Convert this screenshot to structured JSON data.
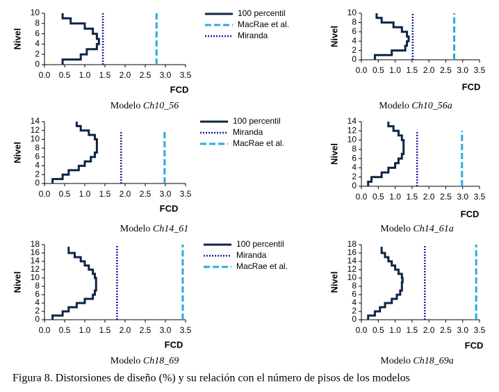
{
  "caption": "Figura 8. Distorsiones de diseño (%) y su relación con el número de pisos de los modelos",
  "chart_data": [
    {
      "type": "line",
      "caption_label": "Modelo",
      "model": "Ch10_56",
      "xlabel": "FCD",
      "ylabel": "Nivel",
      "legend": "right",
      "xlim": [
        0,
        3.5
      ],
      "xticks": [
        {
          "value": 0,
          "label": "0.0"
        },
        0.5,
        {
          "value": 1,
          "label": "1.0"
        },
        1.5,
        {
          "value": 2,
          "label": "2.0"
        },
        2.5,
        {
          "value": 3,
          "label": "3.0"
        },
        3.5
      ],
      "ylim": [
        0,
        10
      ],
      "yticks": [
        0,
        2,
        4,
        6,
        8,
        10
      ],
      "series": [
        {
          "name": "100 percentil",
          "color": "#0d2447",
          "dash": "solid",
          "x": [
            0.45,
            0.45,
            0.65,
            0.65,
            1,
            1,
            1.2,
            1.2,
            1.3,
            1.3,
            1.35,
            1.35,
            1.3,
            1.3,
            1.05,
            1.05,
            0.9,
            0.9,
            0.45,
            0.45
          ],
          "values": [
            10,
            9,
            9,
            8,
            8,
            7,
            7,
            6,
            6,
            5,
            5,
            4,
            4,
            3,
            3,
            2,
            2,
            1,
            1,
            0
          ]
        },
        {
          "name": "MacRae et al.",
          "color": "#29a9e0",
          "dash": "dashed",
          "x": [
            2.78,
            2.78
          ],
          "values": [
            0,
            10
          ]
        },
        {
          "name": "Miranda",
          "color": "#1a1aa8",
          "dash": "dotted",
          "x": [
            1.45,
            1.45
          ],
          "values": [
            0,
            10
          ]
        }
      ]
    },
    {
      "type": "line",
      "caption_label": "Modelo",
      "model": "Ch10_56a",
      "xlabel": "FCD",
      "ylabel": "Nivel",
      "xlim": [
        0,
        3.5
      ],
      "xticks": [
        {
          "value": 0,
          "label": "0.0"
        },
        0.5,
        {
          "value": 1,
          "label": "1.0"
        },
        1.5,
        {
          "value": 2,
          "label": "2.0"
        },
        2.5,
        {
          "value": 3,
          "label": "3.0"
        },
        3.5
      ],
      "ylim": [
        0,
        10
      ],
      "yticks": [
        0,
        2,
        4,
        6,
        8,
        10
      ],
      "series": [
        {
          "color": "#0d2447",
          "dash": "solid",
          "x": [
            0.45,
            0.45,
            0.6,
            0.6,
            0.95,
            0.95,
            1.2,
            1.2,
            1.35,
            1.35,
            1.4,
            1.4,
            1.35,
            1.35,
            1.3,
            1.3,
            0.9,
            0.9,
            0.4,
            0.4
          ],
          "values": [
            10,
            9,
            9,
            8,
            8,
            7,
            7,
            6,
            6,
            5,
            5,
            4,
            4,
            3,
            3,
            2,
            2,
            1,
            1,
            0
          ]
        },
        {
          "color": "#29a9e0",
          "dash": "dashed",
          "x": [
            2.75,
            2.75
          ],
          "values": [
            0,
            10
          ]
        },
        {
          "color": "#1a1aa8",
          "dash": "dotted",
          "x": [
            1.52,
            1.52
          ],
          "values": [
            0,
            10
          ]
        }
      ]
    },
    {
      "type": "line",
      "caption_label": "Modelo",
      "model": "Ch14_61",
      "xlabel": "FCD",
      "ylabel": "Nivel",
      "legend": "right",
      "xlim": [
        0,
        3.5
      ],
      "xticks": [
        {
          "value": 0,
          "label": "0.0"
        },
        0.5,
        {
          "value": 1,
          "label": "1.0"
        },
        1.5,
        {
          "value": 2,
          "label": "2.0"
        },
        2.5,
        {
          "value": 3,
          "label": "3.0"
        },
        3.5
      ],
      "ylim": [
        0,
        14
      ],
      "yticks": [
        0,
        2,
        4,
        6,
        8,
        10,
        12,
        14
      ],
      "series": [
        {
          "name": "100 percentil",
          "color": "#0d2447",
          "dash": "solid",
          "x": [
            0.8,
            0.8,
            0.9,
            0.9,
            1.1,
            1.1,
            1.25,
            1.25,
            1.3,
            1.3,
            1.3,
            1.3,
            1.3,
            1.3,
            1.25,
            1.25,
            1.15,
            1.15,
            1,
            1,
            0.85,
            0.85,
            0.6,
            0.6,
            0.45,
            0.45,
            0.2,
            0.2
          ],
          "values": [
            14,
            13,
            13,
            12,
            12,
            11,
            11,
            10,
            10,
            9,
            9,
            8,
            8,
            7,
            7,
            6,
            6,
            5,
            5,
            4,
            4,
            3,
            3,
            2,
            2,
            1,
            1,
            0
          ]
        },
        {
          "name": "Miranda",
          "color": "#1a1aa8",
          "dash": "dotted",
          "x": [
            1.9,
            1.9
          ],
          "values": [
            0,
            12
          ]
        },
        {
          "name": "MacRae et al.",
          "color": "#29a9e0",
          "dash": "dashed",
          "x": [
            2.98,
            2.98
          ],
          "values": [
            0,
            12
          ]
        }
      ]
    },
    {
      "type": "line",
      "caption_label": "Modelo",
      "model": "Ch14_61a",
      "xlabel": "FCD",
      "ylabel": "Nivel",
      "xlim": [
        0,
        3.5
      ],
      "xticks": [
        {
          "value": 0,
          "label": "0.0"
        },
        0.5,
        {
          "value": 1,
          "label": "1.0"
        },
        1.5,
        {
          "value": 2,
          "label": "2.0"
        },
        2.5,
        {
          "value": 3,
          "label": "3.0"
        },
        3.5
      ],
      "ylim": [
        0,
        14
      ],
      "yticks": [
        0,
        2,
        4,
        6,
        8,
        10,
        12,
        14
      ],
      "series": [
        {
          "color": "#0d2447",
          "dash": "solid",
          "x": [
            0.8,
            0.8,
            0.95,
            0.95,
            1.1,
            1.1,
            1.2,
            1.2,
            1.25,
            1.25,
            1.25,
            1.25,
            1.25,
            1.25,
            1.2,
            1.2,
            1.1,
            1.1,
            1,
            1,
            0.8,
            0.8,
            0.6,
            0.6,
            0.3,
            0.3,
            0.2,
            0.2
          ],
          "values": [
            14,
            13,
            13,
            12,
            12,
            11,
            11,
            10,
            10,
            9,
            9,
            8,
            8,
            7,
            7,
            6,
            6,
            5,
            5,
            4,
            4,
            3,
            3,
            2,
            2,
            1,
            1,
            0
          ]
        },
        {
          "color": "#1a1aa8",
          "dash": "dotted",
          "x": [
            1.65,
            1.65
          ],
          "values": [
            0,
            12
          ]
        },
        {
          "color": "#29a9e0",
          "dash": "dashed",
          "x": [
            2.98,
            2.98
          ],
          "values": [
            0,
            12
          ]
        }
      ]
    },
    {
      "type": "line",
      "caption_label": "Modelo",
      "model": "Ch18_69",
      "xlabel": "FCD",
      "ylabel": "Nivel",
      "legend": "right",
      "xlim": [
        0,
        3.5
      ],
      "xticks": [
        {
          "value": 0,
          "label": "0.0"
        },
        0.5,
        {
          "value": 1,
          "label": "1.0"
        },
        1.5,
        {
          "value": 2,
          "label": "2.0"
        },
        2.5,
        {
          "value": 3,
          "label": "3.0"
        },
        3.5
      ],
      "ylim": [
        0,
        18
      ],
      "yticks": [
        0,
        2,
        4,
        6,
        8,
        10,
        12,
        14,
        16,
        18
      ],
      "series": [
        {
          "name": "100 percentil",
          "color": "#0d2447",
          "dash": "solid",
          "x": [
            0.6,
            0.6,
            0.75,
            0.75,
            0.9,
            0.9,
            1,
            1,
            1.1,
            1.1,
            1.2,
            1.2,
            1.25,
            1.25,
            1.28,
            1.28,
            1.28,
            1.28,
            1.28,
            1.28,
            1.25,
            1.25,
            1.2,
            1.2,
            1,
            1,
            0.8,
            0.8,
            0.6,
            0.6,
            0.45,
            0.45,
            0.2,
            0.2
          ],
          "values": [
            17.5,
            16,
            16,
            15,
            15,
            14,
            14,
            13,
            13,
            12,
            12,
            11,
            11,
            10,
            10,
            9,
            9,
            8,
            8,
            7,
            7,
            6,
            6,
            5,
            5,
            4,
            4,
            3,
            3,
            2,
            2,
            1,
            1,
            0
          ]
        },
        {
          "name": "Miranda",
          "color": "#1a1aa8",
          "dash": "dotted",
          "x": [
            1.8,
            1.8
          ],
          "values": [
            0,
            18
          ]
        },
        {
          "name": "MacRae et al.",
          "color": "#29a9e0",
          "dash": "dashed",
          "x": [
            3.43,
            3.43
          ],
          "values": [
            0,
            18
          ]
        }
      ]
    },
    {
      "type": "line",
      "caption_label": "Modelo",
      "model": "Ch18_69a",
      "xlabel": "FCD",
      "ylabel": "Nivel",
      "xlim": [
        0,
        3.5
      ],
      "xticks": [
        {
          "value": 0,
          "label": "0.0"
        },
        0.5,
        {
          "value": 1,
          "label": "1.0"
        },
        1.5,
        {
          "value": 2,
          "label": "2.0"
        },
        2.5,
        {
          "value": 3,
          "label": "3.0"
        },
        3.5
      ],
      "ylim": [
        0,
        18
      ],
      "yticks": [
        0,
        2,
        4,
        6,
        8,
        10,
        12,
        14,
        16,
        18
      ],
      "series": [
        {
          "color": "#0d2447",
          "dash": "solid",
          "x": [
            0.6,
            0.6,
            0.7,
            0.7,
            0.8,
            0.8,
            0.9,
            0.9,
            1,
            1,
            1.1,
            1.1,
            1.2,
            1.2,
            1.22,
            1.22,
            1.2,
            1.2,
            1.2,
            1.2,
            1.15,
            1.15,
            1.05,
            1.05,
            0.9,
            0.9,
            0.7,
            0.7,
            0.55,
            0.55,
            0.4,
            0.4,
            0.2,
            0.2
          ],
          "values": [
            17.5,
            16,
            16,
            15,
            15,
            14,
            14,
            13,
            13,
            12,
            12,
            11,
            11,
            10,
            10,
            9,
            9,
            8,
            8,
            7,
            7,
            6,
            6,
            5,
            5,
            4,
            4,
            3,
            3,
            2,
            2,
            1,
            1,
            0
          ]
        },
        {
          "color": "#1a1aa8",
          "dash": "dotted",
          "x": [
            1.88,
            1.88
          ],
          "values": [
            0,
            18
          ]
        },
        {
          "color": "#29a9e0",
          "dash": "dashed",
          "x": [
            3.4,
            3.4
          ],
          "values": [
            0,
            18
          ]
        }
      ]
    }
  ]
}
